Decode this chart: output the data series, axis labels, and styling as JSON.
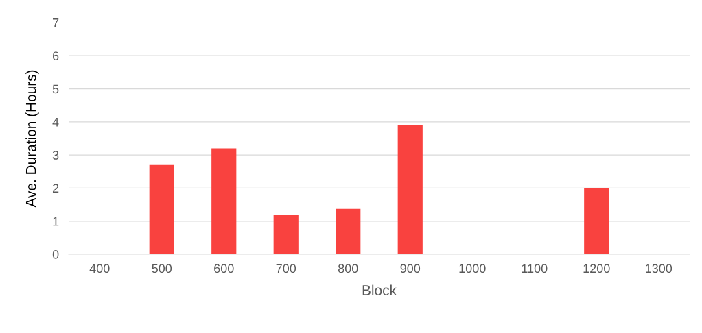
{
  "chart_data": {
    "type": "bar",
    "xlabel": "Block",
    "ylabel": "Ave. Duration (Hours)",
    "categories": [
      "400",
      "500",
      "600",
      "700",
      "800",
      "900",
      "1000",
      "1100",
      "1200",
      "1300"
    ],
    "values": [
      0,
      2.7,
      3.2,
      1.18,
      1.37,
      3.9,
      0,
      0,
      2.01,
      0
    ],
    "color": "#f9423f",
    "ylim": [
      0,
      7
    ],
    "yticks": [
      0,
      1,
      2,
      3,
      4,
      5,
      6,
      7
    ],
    "grid": "y",
    "legend": false
  }
}
